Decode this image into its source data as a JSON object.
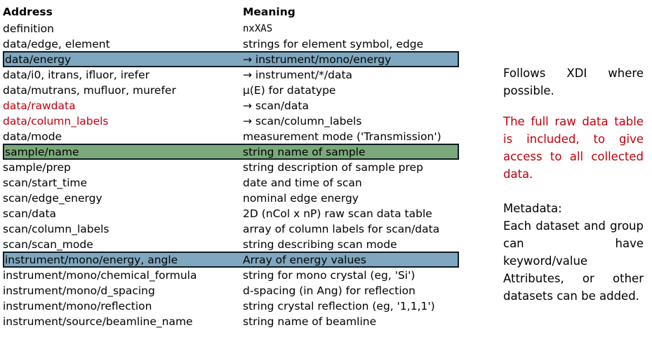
{
  "table": {
    "headers": {
      "address": "Address",
      "meaning": "Meaning"
    },
    "rows": [
      {
        "address": "definition",
        "meaning": "nxXAS"
      },
      {
        "address": "data/edge, element",
        "meaning": "strings for element symbol, edge"
      },
      {
        "address": "data/energy",
        "meaning": "→ instrument/mono/energy"
      },
      {
        "address": "data/i0, itrans, ifluor, irefer",
        "meaning": "→ instrument/*/data"
      },
      {
        "address": "data/mutrans, mufluor, murefer",
        "meaning": "μ(E) for datatype"
      },
      {
        "address": "data/rawdata",
        "meaning": "→ scan/data"
      },
      {
        "address": "data/column_labels",
        "meaning": "→ scan/column_labels"
      },
      {
        "address": "data/mode",
        "meaning": "measurement mode ('Transmission')"
      },
      {
        "address": "sample/name",
        "meaning": "string name of sample"
      },
      {
        "address": "sample/prep",
        "meaning": "string description of sample prep"
      },
      {
        "address": "scan/start_time",
        "meaning": "date and time of scan"
      },
      {
        "address": "scan/edge_energy",
        "meaning": "nominal edge energy"
      },
      {
        "address": "scan/data",
        "meaning": "2D (nCol x nP) raw scan data table"
      },
      {
        "address": "scan/column_labels",
        "meaning": "array of column labels for scan/data"
      },
      {
        "address": "scan/scan_mode",
        "meaning": "string describing scan mode"
      },
      {
        "address": "instrument/mono/energy, angle",
        "meaning": "Array of energy values"
      },
      {
        "address": "instrument/mono/chemical_formula",
        "meaning": "string for mono crystal (eg, 'Si')"
      },
      {
        "address": "instrument/mono/d_spacing",
        "meaning": "d-spacing (in Ang) for reflection"
      },
      {
        "address": "instrument/mono/reflection",
        "meaning": "string crystal reflection (eg, '1,1,1')"
      },
      {
        "address": "instrument/source/beamline_name",
        "meaning": "string name of beamline"
      }
    ]
  },
  "sidebar": {
    "note1": "Follows XDI where possible.",
    "note2": "The full raw data table is included, to give access to all collected data.",
    "note3_title": "Metadata:",
    "note3_body": "Each dataset and group can have keyword/value Attributes, or other datasets can be added."
  },
  "colors": {
    "red_text": "#c0000d",
    "highlight_blue": "#7fa7bf",
    "highlight_green": "#7ba97b",
    "highlight_border": "#0e1a22"
  }
}
